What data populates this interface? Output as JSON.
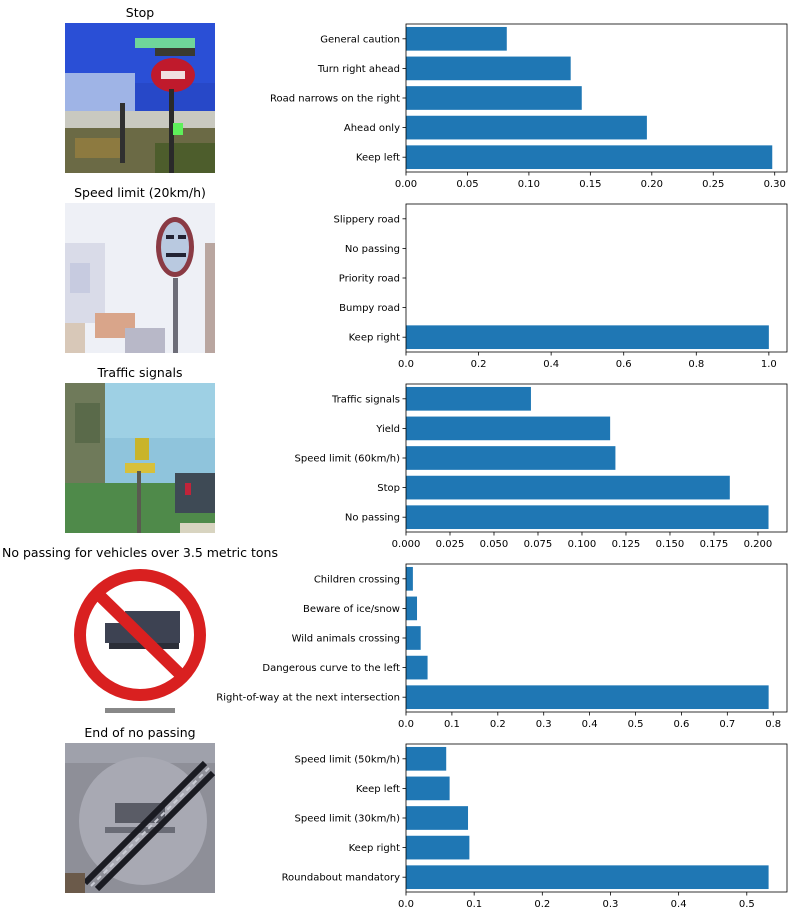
{
  "panels": [
    {
      "title": "Stop"
    },
    {
      "title": "Speed limit (20km/h)"
    },
    {
      "title": "Traffic signals"
    },
    {
      "title": "No passing for vehicles over 3.5 metric tons"
    },
    {
      "title": "End of no passing"
    }
  ],
  "colors": {
    "bar": "#1f77b4",
    "axis": "#000000"
  },
  "chart_data": [
    {
      "type": "bar",
      "orientation": "horizontal",
      "categories": [
        "Keep left",
        "Ahead only",
        "Road narrows on the right",
        "Turn right ahead",
        "General caution"
      ],
      "values": [
        0.298,
        0.196,
        0.143,
        0.134,
        0.082
      ],
      "xlim": [
        0,
        0.31
      ],
      "ticks": [
        0.0,
        0.05,
        0.1,
        0.15,
        0.2,
        0.25,
        0.3
      ],
      "tick_labels": [
        "0.00",
        "0.05",
        "0.10",
        "0.15",
        "0.20",
        "0.25",
        "0.30"
      ]
    },
    {
      "type": "bar",
      "orientation": "horizontal",
      "categories": [
        "Keep right",
        "Bumpy road",
        "Priority road",
        "No passing",
        "Slippery road"
      ],
      "values": [
        1.0,
        0.0,
        0.0,
        0.0,
        0.0
      ],
      "xlim": [
        0,
        1.05
      ],
      "ticks": [
        0.0,
        0.2,
        0.4,
        0.6,
        0.8,
        1.0
      ],
      "tick_labels": [
        "0.0",
        "0.2",
        "0.4",
        "0.6",
        "0.8",
        "1.0"
      ]
    },
    {
      "type": "bar",
      "orientation": "horizontal",
      "categories": [
        "No passing",
        "Stop",
        "Speed limit (60km/h)",
        "Yield",
        "Traffic signals"
      ],
      "values": [
        0.206,
        0.184,
        0.119,
        0.116,
        0.071
      ],
      "xlim": [
        0,
        0.2165
      ],
      "ticks": [
        0.0,
        0.025,
        0.05,
        0.075,
        0.1,
        0.125,
        0.15,
        0.175,
        0.2
      ],
      "tick_labels": [
        "0.000",
        "0.025",
        "0.050",
        "0.075",
        "0.100",
        "0.125",
        "0.150",
        "0.175",
        "0.200"
      ]
    },
    {
      "type": "bar",
      "orientation": "horizontal",
      "categories": [
        "Right-of-way at the next intersection",
        "Dangerous curve to the left",
        "Wild animals crossing",
        "Beware of ice/snow",
        "Children crossing"
      ],
      "values": [
        0.79,
        0.047,
        0.032,
        0.024,
        0.015
      ],
      "xlim": [
        0,
        0.83
      ],
      "ticks": [
        0.0,
        0.1,
        0.2,
        0.3,
        0.4,
        0.5,
        0.6,
        0.7,
        0.8
      ],
      "tick_labels": [
        "0.0",
        "0.1",
        "0.2",
        "0.3",
        "0.4",
        "0.5",
        "0.6",
        "0.7",
        "0.8"
      ]
    },
    {
      "type": "bar",
      "orientation": "horizontal",
      "categories": [
        "Roundabout mandatory",
        "Keep right",
        "Speed limit (30km/h)",
        "Keep left",
        "Speed limit (50km/h)"
      ],
      "values": [
        0.532,
        0.093,
        0.091,
        0.064,
        0.059
      ],
      "xlim": [
        0,
        0.559
      ],
      "ticks": [
        0.0,
        0.1,
        0.2,
        0.3,
        0.4,
        0.5
      ],
      "tick_labels": [
        "0.0",
        "0.1",
        "0.2",
        "0.3",
        "0.4",
        "0.5"
      ]
    }
  ]
}
